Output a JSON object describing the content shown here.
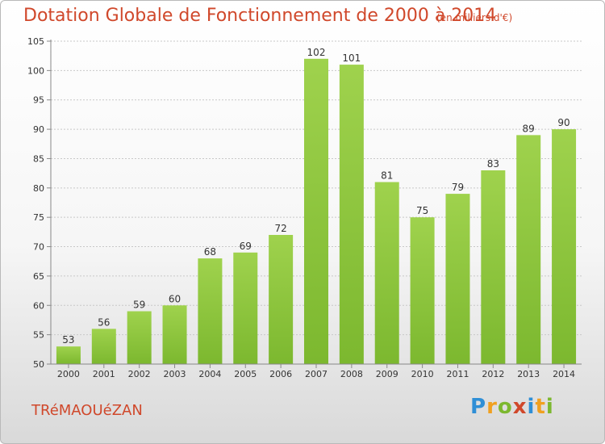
{
  "chart_data": {
    "type": "bar",
    "title": "Dotation Globale de Fonctionnement de 2000 à 2014",
    "subtitle": "(en milliers d'€)",
    "categories": [
      "2000",
      "2001",
      "2002",
      "2003",
      "2004",
      "2005",
      "2006",
      "2007",
      "2008",
      "2009",
      "2010",
      "2011",
      "2012",
      "2013",
      "2014"
    ],
    "values": [
      53,
      56,
      59,
      60,
      68,
      69,
      72,
      102,
      101,
      81,
      75,
      79,
      83,
      89,
      90
    ],
    "xlabel": "",
    "ylabel": "",
    "ylim": [
      50,
      105
    ],
    "yticks": [
      50,
      55,
      60,
      65,
      70,
      75,
      80,
      85,
      90,
      95,
      100,
      105
    ],
    "grid": true,
    "legend": "none",
    "bar_color": "#7cb82f",
    "bar_color_light": "#9fd24d"
  },
  "commune": "TRéMAOUéZAN",
  "logo": {
    "letters": [
      "P",
      "r",
      "o",
      "x",
      "i",
      "t",
      "i"
    ],
    "colors": [
      "#2f8fd6",
      "#f0a020",
      "#7cb82f",
      "#d0482b",
      "#2f8fd6",
      "#f0a020",
      "#7cb82f"
    ]
  }
}
